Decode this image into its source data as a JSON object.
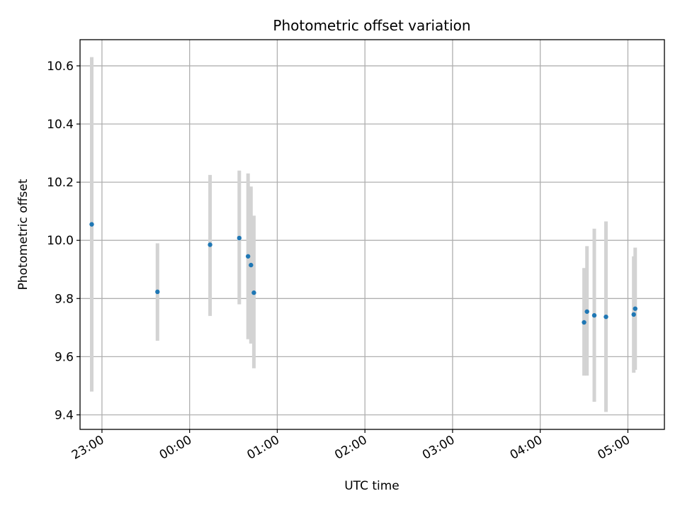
{
  "chart_data": {
    "type": "scatter",
    "title": "Photometric offset variation",
    "xlabel": "UTC time",
    "ylabel": "Photometric offset",
    "x_axis": {
      "kind": "time",
      "range": [
        "22:45",
        "05:25"
      ],
      "ticks": [
        "23:00",
        "00:00",
        "01:00",
        "02:00",
        "03:00",
        "04:00",
        "05:00"
      ]
    },
    "y_axis": {
      "range": [
        9.35,
        10.69
      ],
      "ticks": [
        "9.4",
        "9.6",
        "9.8",
        "10.0",
        "10.2",
        "10.4",
        "10.6"
      ]
    },
    "grid": true,
    "colors": {
      "points": "#1f77b4",
      "errorbars": "#d3d3d3",
      "grid": "#b0b0b0"
    },
    "series": [
      {
        "points": [
          {
            "x": "22:53",
            "y": 10.055,
            "err_low": 9.48,
            "err_high": 10.63
          },
          {
            "x": "23:38",
            "y": 9.823,
            "err_low": 9.655,
            "err_high": 9.99
          },
          {
            "x": "00:14",
            "y": 9.985,
            "err_low": 9.74,
            "err_high": 10.225
          },
          {
            "x": "00:34",
            "y": 10.008,
            "err_low": 9.78,
            "err_high": 10.24
          },
          {
            "x": "00:40",
            "y": 9.945,
            "err_low": 9.66,
            "err_high": 10.23
          },
          {
            "x": "00:42",
            "y": 9.915,
            "err_low": 9.645,
            "err_high": 10.185
          },
          {
            "x": "00:44",
            "y": 9.82,
            "err_low": 9.56,
            "err_high": 10.085
          },
          {
            "x": "04:30",
            "y": 9.718,
            "err_low": 9.535,
            "err_high": 9.905
          },
          {
            "x": "04:32",
            "y": 9.755,
            "err_low": 9.535,
            "err_high": 9.98
          },
          {
            "x": "04:37",
            "y": 9.742,
            "err_low": 9.445,
            "err_high": 10.04
          },
          {
            "x": "04:45",
            "y": 9.737,
            "err_low": 9.41,
            "err_high": 10.065
          },
          {
            "x": "05:04",
            "y": 9.745,
            "err_low": 9.545,
            "err_high": 9.945
          },
          {
            "x": "05:05",
            "y": 9.765,
            "err_low": 9.555,
            "err_high": 9.975
          }
        ]
      }
    ]
  }
}
